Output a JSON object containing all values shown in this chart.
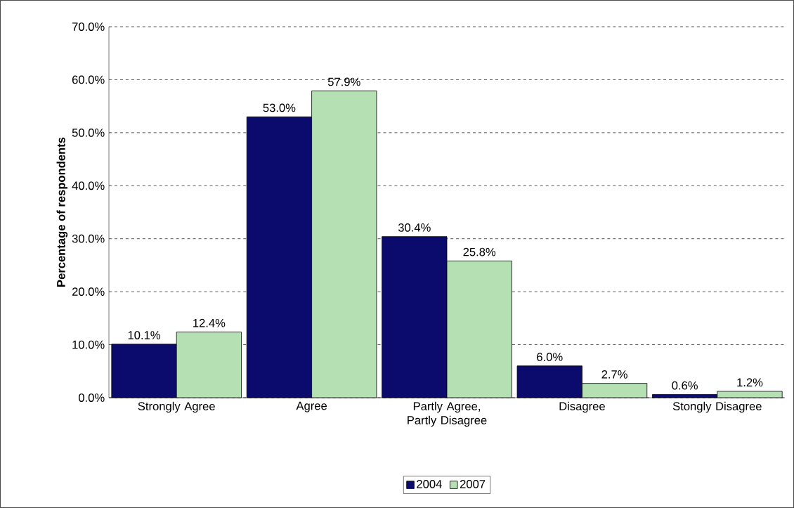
{
  "chart_data": {
    "type": "bar",
    "ylabel": "Percentage of respondents",
    "categories": [
      "Strongly Agree",
      "Agree",
      "Partly Agree, Partly Disagree",
      "Disagree",
      "Stongly Disagree"
    ],
    "series": [
      {
        "name": "2004",
        "color": "#0b0b6e",
        "values": [
          10.1,
          53.0,
          30.4,
          6.0,
          0.6
        ],
        "value_labels": [
          "10.1%",
          "53.0%",
          "30.4%",
          "6.0%",
          "0.6%"
        ]
      },
      {
        "name": "2007",
        "color": "#b4e0b4",
        "values": [
          12.4,
          57.9,
          25.8,
          2.7,
          1.2
        ],
        "value_labels": [
          "12.4%",
          "57.9%",
          "25.8%",
          "2.7%",
          "1.2%"
        ]
      }
    ],
    "ylim": [
      0,
      70
    ],
    "yticks": [
      {
        "value": 0,
        "label": "0.0%"
      },
      {
        "value": 10,
        "label": "10.0%"
      },
      {
        "value": 20,
        "label": "20.0%"
      },
      {
        "value": 30,
        "label": "30.0%"
      },
      {
        "value": 40,
        "label": "40.0%"
      },
      {
        "value": 50,
        "label": "50.0%"
      },
      {
        "value": 60,
        "label": "60.0%"
      },
      {
        "value": 70,
        "label": "70.0%"
      }
    ],
    "grid": "y",
    "legend": "bottom"
  }
}
